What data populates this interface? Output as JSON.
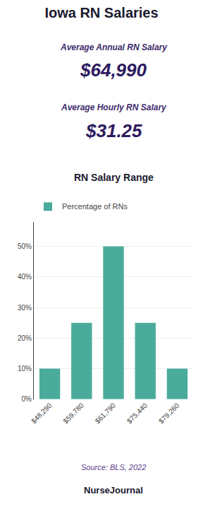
{
  "chart_data": {
    "type": "bar",
    "title": "Iowa RN Salaries",
    "subtitle": "RN Salary Range",
    "categories": [
      "$48,290",
      "$59,780",
      "$61,790",
      "$75,440",
      "$79,260"
    ],
    "series": [
      {
        "name": "Percentage of RNs",
        "color": "#4aab9a",
        "values": [
          10,
          25,
          50,
          25,
          10
        ]
      }
    ],
    "ylim": [
      0,
      58
    ],
    "yticks": [
      {
        "value": 0,
        "label": "0%"
      },
      {
        "value": 10,
        "label": "10%"
      },
      {
        "value": 20,
        "label": "20%"
      },
      {
        "value": 30,
        "label": "30%"
      },
      {
        "value": 40,
        "label": "40%"
      },
      {
        "value": 50,
        "label": "50%"
      }
    ],
    "grid": true,
    "legend": "upper left",
    "annotations": [
      "Average Annual RN Salary",
      "$64,990",
      "Average Hourly RN Salary",
      "$31.25",
      "Source: BLS, 2022",
      "NurseJournal"
    ]
  }
}
